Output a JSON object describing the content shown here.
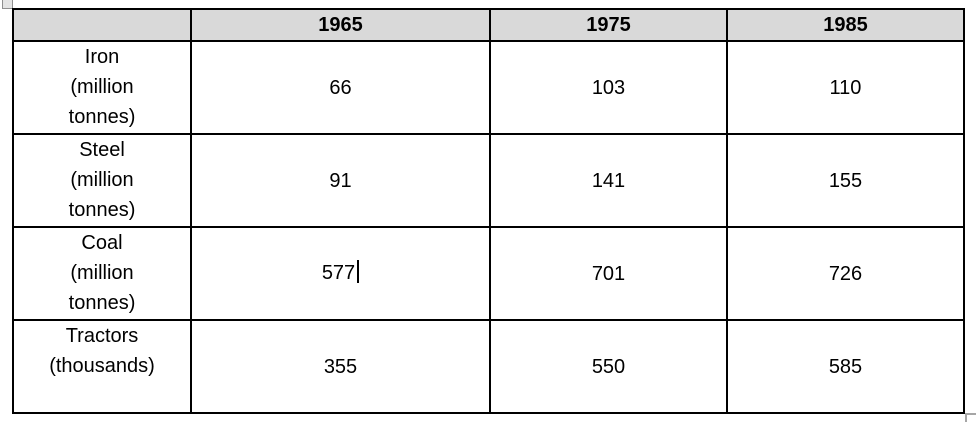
{
  "table": {
    "headers": [
      "",
      "1965",
      "1975",
      "1985"
    ],
    "rows": [
      {
        "label": "Iron\n(million\ntonnes)",
        "values": [
          "66",
          "103",
          "110"
        ]
      },
      {
        "label": "Steel\n(million\ntonnes)",
        "values": [
          "91",
          "141",
          "155"
        ]
      },
      {
        "label": "Coal\n(million\ntonnes)",
        "values": [
          "577",
          "701",
          "726"
        ]
      },
      {
        "label": "Tractors\n(thousands)",
        "values": [
          "355",
          "550",
          "585"
        ]
      }
    ],
    "text_cursor": {
      "row_index": 2,
      "column_index": 0,
      "after_text": "577"
    }
  },
  "chart_data": {
    "type": "table",
    "categories": [
      "1965",
      "1975",
      "1985"
    ],
    "series": [
      {
        "name": "Iron (million tonnes)",
        "values": [
          66,
          103,
          110
        ]
      },
      {
        "name": "Steel (million tonnes)",
        "values": [
          91,
          141,
          155
        ]
      },
      {
        "name": "Coal (million tonnes)",
        "values": [
          577,
          701,
          726
        ]
      },
      {
        "name": "Tractors (thousands)",
        "values": [
          355,
          550,
          585
        ]
      }
    ]
  },
  "colors": {
    "header_fill": "#d9d9d9",
    "border": "#000000",
    "text": "#000000",
    "handle_grey": "#a6a6a6",
    "background": "#ffffff"
  }
}
